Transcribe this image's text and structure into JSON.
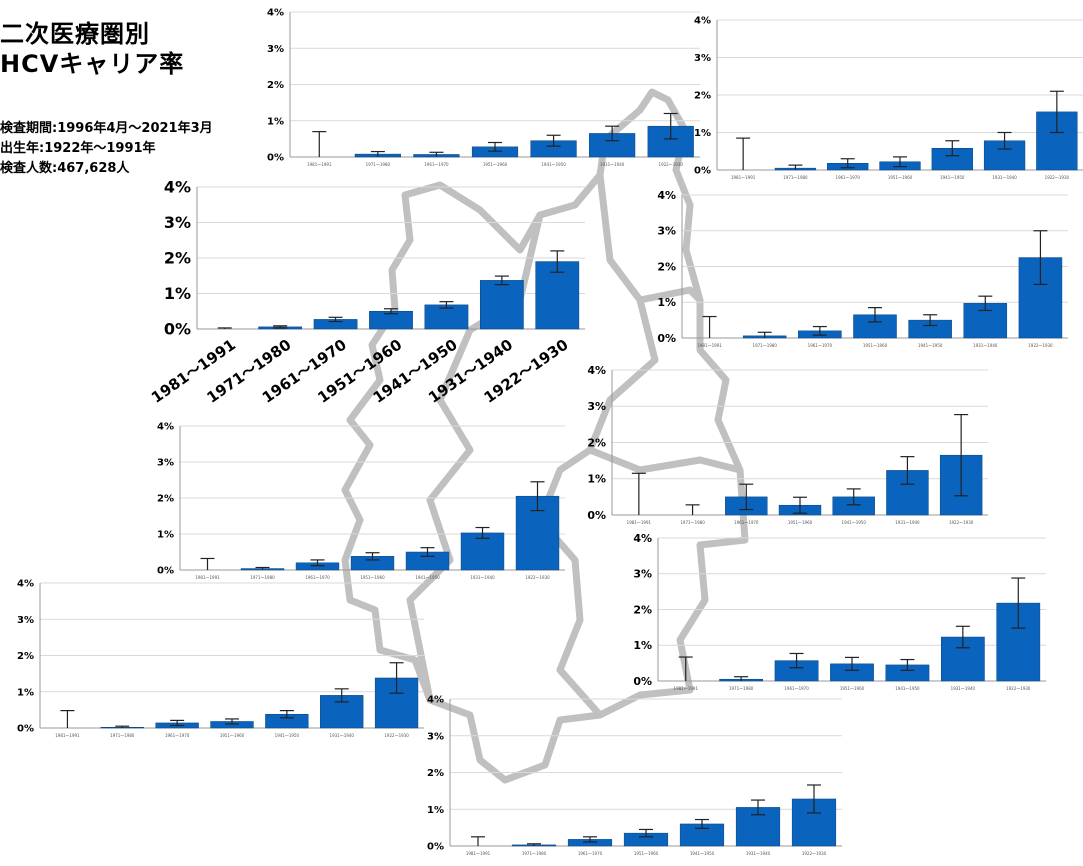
{
  "title_lines": [
    "二次医療圏別",
    "HCVキャリア率"
  ],
  "info_lines": [
    "検査期間:1996年4月～2021年3月",
    "出生年:1922年～1991年",
    "検査人数:467,628人"
  ],
  "colors": {
    "bar": "#0A64BE",
    "bar_edge": "#08407a",
    "map": "#c0c0c0",
    "grid": "#d9d9d9"
  },
  "chart_data": [
    {
      "type": "bar",
      "categories": [
        "1981～1991",
        "1971～1980",
        "1961～1970",
        "1951～1960",
        "1941～1950",
        "1931～1940",
        "1922～1930"
      ],
      "values": [
        0.0,
        0.08,
        0.07,
        0.28,
        0.45,
        0.65,
        0.85
      ],
      "errors": [
        0.7,
        0.07,
        0.06,
        0.12,
        0.15,
        0.2,
        0.35
      ],
      "yticks": [
        "0%",
        "1%",
        "2%",
        "3%",
        "4%"
      ],
      "ylim": [
        0,
        4
      ]
    },
    {
      "type": "bar",
      "categories": [
        "1981～1991",
        "1971～1980",
        "1961～1970",
        "1951～1960",
        "1941～1950",
        "1931～1940",
        "1922～1930"
      ],
      "values": [
        0.0,
        0.05,
        0.18,
        0.22,
        0.58,
        0.78,
        1.55
      ],
      "errors": [
        0.85,
        0.08,
        0.12,
        0.13,
        0.2,
        0.22,
        0.55
      ],
      "yticks": [
        "0%",
        "1%",
        "2%",
        "3%",
        "4%"
      ],
      "ylim": [
        0,
        4
      ]
    },
    {
      "type": "bar",
      "categories": [
        "1981～1991",
        "1971～1980",
        "1961～1970",
        "1951～1960",
        "1941～1950",
        "1931～1940",
        "1922～1930"
      ],
      "values": [
        0.0,
        0.06,
        0.27,
        0.5,
        0.68,
        1.37,
        1.9
      ],
      "errors": [
        0.03,
        0.03,
        0.06,
        0.07,
        0.09,
        0.12,
        0.3
      ],
      "yticks": [
        "0%",
        "1%",
        "2%",
        "3%",
        "4%"
      ],
      "ylim": [
        0,
        4
      ]
    },
    {
      "type": "bar",
      "categories": [
        "1981～1991",
        "1971～1980",
        "1961～1970",
        "1951～1960",
        "1941～1950",
        "1931～1940",
        "1922～1930"
      ],
      "values": [
        0.0,
        0.06,
        0.2,
        0.65,
        0.5,
        0.97,
        2.25
      ],
      "errors": [
        0.6,
        0.1,
        0.12,
        0.2,
        0.15,
        0.2,
        0.75
      ],
      "yticks": [
        "0%",
        "1%",
        "2%",
        "3%",
        "4%"
      ],
      "ylim": [
        0,
        4
      ]
    },
    {
      "type": "bar",
      "categories": [
        "1981～1991",
        "1971～1980",
        "1961～1970",
        "1951～1960",
        "1941～1950",
        "1931～1940",
        "1922～1930"
      ],
      "values": [
        0.0,
        0.0,
        0.5,
        0.27,
        0.5,
        1.23,
        1.65
      ],
      "errors": [
        1.15,
        0.28,
        0.35,
        0.22,
        0.22,
        0.38,
        1.12
      ],
      "yticks": [
        "0%",
        "1%",
        "2%",
        "3%",
        "4%"
      ],
      "ylim": [
        0,
        4
      ]
    },
    {
      "type": "bar",
      "categories": [
        "1981～1991",
        "1971～1980",
        "1961～1970",
        "1951～1960",
        "1941～1950",
        "1931～1940",
        "1922～1930"
      ],
      "values": [
        0.0,
        0.04,
        0.2,
        0.38,
        0.5,
        1.03,
        2.05
      ],
      "errors": [
        0.32,
        0.03,
        0.08,
        0.1,
        0.12,
        0.15,
        0.4
      ],
      "yticks": [
        "0%",
        "1%",
        "2%",
        "3%",
        "4%"
      ],
      "ylim": [
        0,
        4
      ]
    },
    {
      "type": "bar",
      "categories": [
        "1981～1991",
        "1971～1980",
        "1961～1970",
        "1951～1960",
        "1941～1950",
        "1931～1940",
        "1922～1930"
      ],
      "values": [
        0.0,
        0.05,
        0.57,
        0.48,
        0.45,
        1.23,
        2.18
      ],
      "errors": [
        0.67,
        0.07,
        0.2,
        0.18,
        0.15,
        0.3,
        0.7
      ],
      "yticks": [
        "0%",
        "1%",
        "2%",
        "3%",
        "4%"
      ],
      "ylim": [
        0,
        4
      ]
    },
    {
      "type": "bar",
      "categories": [
        "1981～1991",
        "1971～1980",
        "1961～1970",
        "1951～1960",
        "1941～1950",
        "1931～1940",
        "1922～1930"
      ],
      "values": [
        0.0,
        0.02,
        0.14,
        0.18,
        0.38,
        0.9,
        1.38
      ],
      "errors": [
        0.48,
        0.03,
        0.07,
        0.07,
        0.1,
        0.18,
        0.42
      ],
      "yticks": [
        "0%",
        "1%",
        "2%",
        "3%",
        "4%"
      ],
      "ylim": [
        0,
        4
      ]
    },
    {
      "type": "bar",
      "categories": [
        "1981～1991",
        "1971～1980",
        "1961～1970",
        "1951～1960",
        "1941～1950",
        "1931～1940",
        "1922～1930"
      ],
      "values": [
        0.0,
        0.03,
        0.18,
        0.35,
        0.6,
        1.05,
        1.28
      ],
      "errors": [
        0.25,
        0.03,
        0.07,
        0.1,
        0.12,
        0.2,
        0.38
      ],
      "yticks": [
        "0%",
        "1%",
        "2%",
        "3%",
        "4%"
      ],
      "ylim": [
        0,
        4
      ]
    }
  ]
}
